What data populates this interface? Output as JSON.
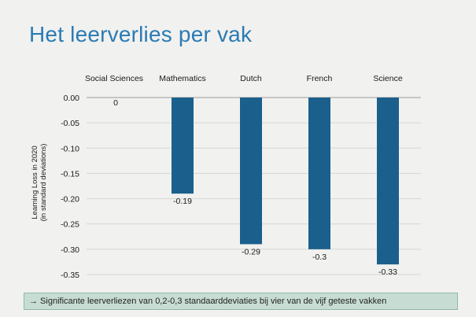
{
  "slide": {
    "title": "Het leerverlies per vak",
    "callout": "→ Significante leerverliezen van 0,2-0,3 standaarddeviaties bij vier van de vijf geteste vakken"
  },
  "chart_data": {
    "type": "bar",
    "categories": [
      "Social Sciences",
      "Mathematics",
      "Dutch",
      "French",
      "Science"
    ],
    "values": [
      0,
      -0.19,
      -0.29,
      -0.3,
      -0.33
    ],
    "value_labels": [
      "0",
      "-0.19",
      "-0.29",
      "-0.3",
      "-0.33"
    ],
    "ylabel_lines": [
      "Learning Loss in 2020",
      "(in standard deviations)"
    ],
    "ylim": [
      -0.35,
      0
    ],
    "yticks": [
      0,
      -0.05,
      -0.1,
      -0.15,
      -0.2,
      -0.25,
      -0.3,
      -0.35
    ],
    "ytick_labels": [
      "0.00",
      "-0.05",
      "-0.10",
      "-0.15",
      "-0.20",
      "-0.25",
      "-0.30",
      "-0.35"
    ],
    "category_label_position": "top",
    "grid": true,
    "bar_color": "#1b5f8c"
  }
}
